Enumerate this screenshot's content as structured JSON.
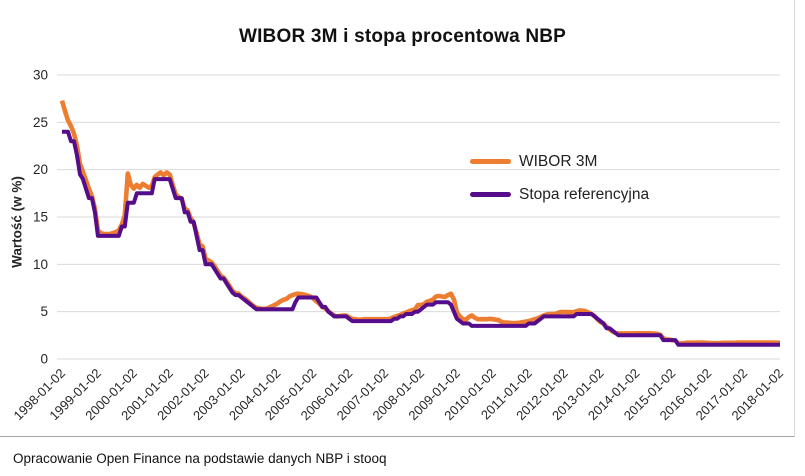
{
  "title": "WIBOR 3M i stopa procentowa NBP",
  "source_note": "Opracowanie Open Finance na podstawie danych NBP i stooq",
  "y_axis": {
    "label": "Wartość (w %)",
    "ticks": [
      0,
      5,
      10,
      15,
      20,
      25,
      30
    ]
  },
  "x_axis": {
    "tick_labels": [
      "1998-01-02",
      "1999-01-02",
      "2000-01-02",
      "2001-01-02",
      "2002-01-02",
      "2003-01-02",
      "2004-01-02",
      "2005-01-02",
      "2006-01-02",
      "2007-01-02",
      "2008-01-02",
      "2009-01-02",
      "2010-01-02",
      "2011-01-02",
      "2012-01-02",
      "2013-01-02",
      "2014-01-02",
      "2015-01-02",
      "2016-01-02",
      "2017-01-02",
      "2018-01-02"
    ]
  },
  "legend": {
    "items": [
      {
        "label": "WIBOR 3M",
        "color": "#ed7d31"
      },
      {
        "label": "Stopa referencyjna",
        "color": "#550d8c"
      }
    ]
  },
  "colors": {
    "wibor": "#ed7d31",
    "stopa": "#550d8c",
    "gridline": "#d9d9d9",
    "axis_text": "#262626"
  },
  "chart_data": {
    "type": "line",
    "title": "WIBOR 3M i stopa procentowa NBP",
    "ylabel": "Wartość (w %)",
    "ylim": [
      0,
      30
    ],
    "grid": "horizontal",
    "legend_position": "inside-right",
    "x_unit": "monthly",
    "x_start": "1998-01",
    "x_end": "2018-01",
    "series": [
      {
        "name": "WIBOR 3M",
        "color": "#ed7d31",
        "values": [
          27.3,
          26.2,
          25.2,
          24.6,
          23.8,
          22.5,
          20.6,
          19.8,
          18.9,
          18,
          17.2,
          15.9,
          13.6,
          13.3,
          13.2,
          13.2,
          13.2,
          13.3,
          13.4,
          13.6,
          14.2,
          15.2,
          19.6,
          18.4,
          18,
          18.4,
          18.1,
          18.5,
          18.3,
          18.1,
          18.3,
          19.2,
          19.5,
          19.7,
          19.4,
          19.7,
          19.5,
          18.4,
          17.4,
          17.1,
          16.9,
          15.9,
          15.7,
          14.9,
          14.4,
          13.3,
          12.1,
          11.9,
          10.6,
          10.4,
          10.2,
          9.8,
          9.3,
          8.8,
          8.6,
          8.2,
          7.7,
          7.2,
          6.95,
          6.9,
          6.6,
          6.4,
          6.15,
          5.85,
          5.6,
          5.4,
          5.35,
          5.3,
          5.3,
          5.4,
          5.55,
          5.7,
          5.85,
          6.1,
          6.25,
          6.35,
          6.6,
          6.75,
          6.85,
          6.9,
          6.85,
          6.8,
          6.7,
          6.6,
          6.4,
          6.1,
          5.85,
          5.5,
          5.35,
          5.05,
          4.8,
          4.6,
          4.5,
          4.55,
          4.6,
          4.6,
          4.4,
          4.25,
          4.2,
          4.15,
          4.15,
          4.2,
          4.2,
          4.2,
          4.2,
          4.2,
          4.2,
          4.2,
          4.2,
          4.2,
          4.3,
          4.45,
          4.55,
          4.65,
          4.8,
          4.9,
          5.05,
          5.15,
          5.25,
          5.7,
          5.7,
          5.8,
          6.05,
          6.15,
          6.3,
          6.6,
          6.65,
          6.6,
          6.55,
          6.75,
          6.9,
          6.3,
          4.9,
          4.5,
          4.2,
          4.15,
          4.45,
          4.6,
          4.35,
          4.2,
          4.2,
          4.2,
          4.2,
          4.25,
          4.2,
          4.15,
          4.1,
          3.9,
          3.85,
          3.85,
          3.8,
          3.8,
          3.8,
          3.85,
          3.9,
          3.95,
          4,
          4.1,
          4.2,
          4.3,
          4.45,
          4.6,
          4.7,
          4.75,
          4.75,
          4.75,
          4.9,
          4.98,
          4.97,
          4.95,
          4.94,
          4.94,
          5.05,
          5.13,
          5.1,
          5.05,
          4.92,
          4.75,
          4.55,
          4.2,
          3.9,
          3.75,
          3.4,
          3.15,
          2.9,
          2.75,
          2.7,
          2.7,
          2.7,
          2.7,
          2.7,
          2.7,
          2.71,
          2.71,
          2.71,
          2.72,
          2.72,
          2.7,
          2.68,
          2.65,
          2.55,
          2.2,
          2.05,
          2.06,
          2,
          1.95,
          1.65,
          1.65,
          1.68,
          1.72,
          1.72,
          1.72,
          1.73,
          1.73,
          1.73,
          1.72,
          1.7,
          1.68,
          1.67,
          1.67,
          1.68,
          1.71,
          1.71,
          1.71,
          1.71,
          1.71,
          1.73,
          1.73,
          1.73,
          1.73,
          1.73,
          1.73,
          1.73,
          1.73,
          1.73,
          1.73,
          1.73,
          1.73,
          1.72,
          1.72,
          1.72
        ]
      },
      {
        "name": "Stopa referencyjna",
        "color": "#550d8c",
        "values": [
          24,
          24,
          24,
          23,
          23,
          21.5,
          19.5,
          19,
          18,
          17,
          17,
          15.5,
          13,
          13,
          13,
          13,
          13,
          13,
          13,
          13,
          14,
          14,
          16.5,
          16.5,
          16.5,
          17.5,
          17.5,
          17.5,
          17.5,
          17.5,
          17.5,
          19,
          19,
          19,
          19,
          19,
          19,
          18,
          17,
          17,
          17,
          15.5,
          15.5,
          14.5,
          14.5,
          13,
          11.5,
          11.5,
          10,
          10,
          10,
          9.5,
          9,
          8.5,
          8.5,
          8,
          7.5,
          7,
          6.75,
          6.75,
          6.5,
          6.25,
          6,
          5.75,
          5.5,
          5.25,
          5.25,
          5.25,
          5.25,
          5.25,
          5.25,
          5.25,
          5.25,
          5.25,
          5.25,
          5.25,
          5.25,
          5.25,
          6,
          6.5,
          6.5,
          6.5,
          6.5,
          6.5,
          6.5,
          6.5,
          6,
          5.5,
          5.5,
          5,
          4.75,
          4.5,
          4.5,
          4.5,
          4.5,
          4.5,
          4.25,
          4,
          4,
          4,
          4,
          4,
          4,
          4,
          4,
          4,
          4,
          4,
          4,
          4,
          4,
          4.25,
          4.25,
          4.5,
          4.5,
          4.75,
          4.75,
          4.75,
          5,
          5,
          5.25,
          5.5,
          5.75,
          5.75,
          5.75,
          6,
          6,
          6,
          6,
          6,
          5.75,
          5,
          4.25,
          4,
          3.75,
          3.75,
          3.75,
          3.5,
          3.5,
          3.5,
          3.5,
          3.5,
          3.5,
          3.5,
          3.5,
          3.5,
          3.5,
          3.5,
          3.5,
          3.5,
          3.5,
          3.5,
          3.5,
          3.5,
          3.5,
          3.5,
          3.75,
          3.75,
          3.75,
          4,
          4.25,
          4.5,
          4.5,
          4.5,
          4.5,
          4.5,
          4.5,
          4.5,
          4.5,
          4.5,
          4.5,
          4.5,
          4.75,
          4.75,
          4.75,
          4.75,
          4.75,
          4.75,
          4.5,
          4.25,
          4,
          3.75,
          3.25,
          3.25,
          3,
          2.75,
          2.5,
          2.5,
          2.5,
          2.5,
          2.5,
          2.5,
          2.5,
          2.5,
          2.5,
          2.5,
          2.5,
          2.5,
          2.5,
          2.5,
          2.5,
          2,
          2,
          2,
          2,
          2,
          1.5,
          1.5,
          1.5,
          1.5,
          1.5,
          1.5,
          1.5,
          1.5,
          1.5,
          1.5,
          1.5,
          1.5,
          1.5,
          1.5,
          1.5,
          1.5,
          1.5,
          1.5,
          1.5,
          1.5,
          1.5,
          1.5,
          1.5,
          1.5,
          1.5,
          1.5,
          1.5,
          1.5,
          1.5,
          1.5,
          1.5,
          1.5,
          1.5,
          1.5,
          1.5
        ]
      }
    ]
  }
}
